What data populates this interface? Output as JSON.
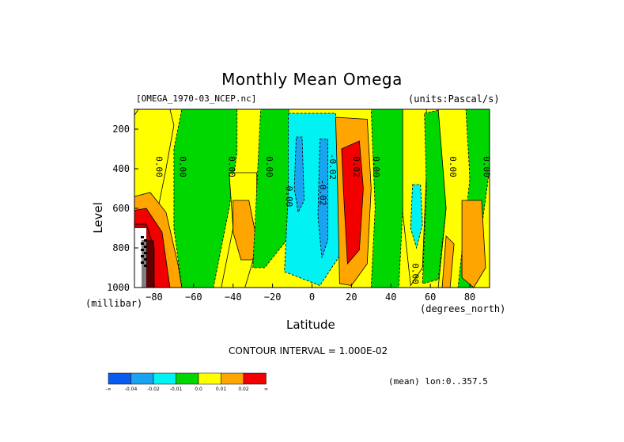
{
  "header": {
    "title": "Monthly Mean Omega",
    "file": "[OMEGA_1970-03_NCEP.nc]",
    "units": "(units:Pascal/s)"
  },
  "axes": {
    "ylabel": "Level",
    "yunits": "(millibar)",
    "xlabel": "Latitude",
    "xunits": "(degrees_north)"
  },
  "footer": {
    "contour_interval": "CONTOUR INTERVAL = 1.000E-02",
    "mean_note": "(mean) lon:0..357.5"
  },
  "colorbar": {
    "colors": [
      "#0a5cf0",
      "#1aa3f0",
      "#00f2f2",
      "#00d600",
      "#ffff00",
      "#ffa500",
      "#f20000"
    ],
    "labels": [
      "-∞",
      "-0.04",
      "-0.02",
      "-0.01",
      "0.0",
      "0.01",
      "0.02",
      "∞"
    ]
  },
  "chart_data": {
    "type": "contour",
    "title": "Monthly Mean Omega",
    "xlabel": "Latitude",
    "ylabel": "Level",
    "xlim": [
      -90,
      90
    ],
    "ylim": [
      1000,
      100
    ],
    "xticks": [
      -80,
      -60,
      -40,
      -20,
      0,
      20,
      40,
      60,
      80
    ],
    "yticks": [
      200,
      400,
      600,
      800,
      1000
    ],
    "contour_labels": [
      "0.00",
      "0.00",
      "0.00",
      "0.00",
      "0.00",
      "-0.02",
      "-0.02",
      "0.02",
      "0.00",
      "0.00",
      "0.00",
      "0.00"
    ],
    "regions": [
      {
        "level": "0.00",
        "poly": [
          [
            -88,
            100
          ],
          [
            -72,
            100
          ],
          [
            -70,
            180
          ],
          [
            -74,
            400
          ],
          [
            -78,
            600
          ],
          [
            -82,
            750
          ],
          [
            -90,
            760
          ],
          [
            -90,
            130
          ]
        ]
      },
      {
        "level": "-0.01",
        "poly": [
          [
            -66,
            100
          ],
          [
            -38,
            100
          ],
          [
            -38,
            320
          ],
          [
            -42,
            600
          ],
          [
            -50,
            1000
          ],
          [
            -66,
            1000
          ],
          [
            -70,
            700
          ],
          [
            -70,
            300
          ]
        ]
      },
      {
        "level": "0.00",
        "poly": [
          [
            -42,
            420
          ],
          [
            -28,
            420
          ],
          [
            -28,
            800
          ],
          [
            -34,
            1000
          ],
          [
            -46,
            1000
          ],
          [
            -40,
            700
          ]
        ]
      },
      {
        "level": "0.01",
        "poly": [
          [
            -40,
            560
          ],
          [
            -32,
            560
          ],
          [
            -28,
            760
          ],
          [
            -30,
            860
          ],
          [
            -36,
            860
          ],
          [
            -40,
            720
          ]
        ]
      },
      {
        "level": "-0.01",
        "poly": [
          [
            -26,
            100
          ],
          [
            -12,
            100
          ],
          [
            -8,
            250
          ],
          [
            -8,
            700
          ],
          [
            -24,
            900
          ],
          [
            -30,
            900
          ],
          [
            -28,
            500
          ]
        ]
      },
      {
        "level": "-0.02",
        "poly": [
          [
            -12,
            120
          ],
          [
            12,
            120
          ],
          [
            13,
            400
          ],
          [
            14,
            840
          ],
          [
            4,
            990
          ],
          [
            -14,
            920
          ],
          [
            -12,
            520
          ]
        ]
      },
      {
        "level": "-0.04",
        "poly": [
          [
            -8,
            240
          ],
          [
            -5,
            240
          ],
          [
            -4,
            560
          ],
          [
            -7,
            620
          ],
          [
            -9,
            500
          ]
        ]
      },
      {
        "level": "-0.04",
        "poly": [
          [
            4,
            250
          ],
          [
            8,
            250
          ],
          [
            8,
            760
          ],
          [
            5,
            850
          ],
          [
            3,
            640
          ]
        ]
      },
      {
        "level": "0.01",
        "poly": [
          [
            12,
            140
          ],
          [
            28,
            150
          ],
          [
            30,
            500
          ],
          [
            28,
            880
          ],
          [
            20,
            990
          ],
          [
            14,
            980
          ],
          [
            13,
            500
          ]
        ]
      },
      {
        "level": "0.02",
        "poly": [
          [
            15,
            300
          ],
          [
            24,
            260
          ],
          [
            26,
            500
          ],
          [
            24,
            810
          ],
          [
            18,
            880
          ],
          [
            16,
            520
          ]
        ]
      },
      {
        "level": "-0.01",
        "poly": [
          [
            30,
            100
          ],
          [
            46,
            100
          ],
          [
            48,
            250
          ],
          [
            46,
            600
          ],
          [
            44,
            1000
          ],
          [
            30,
            1000
          ],
          [
            32,
            600
          ]
        ]
      },
      {
        "level": "0.00",
        "poly": [
          [
            46,
            100
          ],
          [
            58,
            100
          ],
          [
            58,
            420
          ],
          [
            56,
            900
          ],
          [
            50,
            990
          ],
          [
            46,
            620
          ]
        ]
      },
      {
        "level": "-0.01",
        "poly": [
          [
            57,
            120
          ],
          [
            66,
            100
          ],
          [
            68,
            600
          ],
          [
            64,
            960
          ],
          [
            56,
            980
          ],
          [
            58,
            500
          ]
        ]
      },
      {
        "level": "-0.02",
        "poly": [
          [
            51,
            480
          ],
          [
            55,
            480
          ],
          [
            56,
            680
          ],
          [
            53,
            800
          ],
          [
            50,
            700
          ]
        ]
      },
      {
        "level": "0.00",
        "poly": [
          [
            64,
            100
          ],
          [
            80,
            100
          ],
          [
            80,
            650
          ],
          [
            78,
            1000
          ],
          [
            64,
            1000
          ],
          [
            68,
            600
          ]
        ]
      },
      {
        "level": "-0.01",
        "poly": [
          [
            78,
            100
          ],
          [
            90,
            100
          ],
          [
            90,
            400
          ],
          [
            82,
            1000
          ],
          [
            74,
            1000
          ],
          [
            80,
            450
          ]
        ]
      },
      {
        "level": "0.01",
        "poly": [
          [
            68,
            740
          ],
          [
            72,
            780
          ],
          [
            70,
            1000
          ],
          [
            66,
            1000
          ]
        ]
      },
      {
        "level": "0.01",
        "poly": [
          [
            76,
            560
          ],
          [
            86,
            560
          ],
          [
            88,
            900
          ],
          [
            82,
            1000
          ],
          [
            76,
            950
          ]
        ]
      },
      {
        "level": "0.01",
        "poly": [
          [
            -90,
            540
          ],
          [
            -82,
            520
          ],
          [
            -74,
            620
          ],
          [
            -68,
            880
          ],
          [
            -66,
            1000
          ],
          [
            -90,
            1000
          ]
        ]
      },
      {
        "level": "0.02",
        "poly": [
          [
            -90,
            610
          ],
          [
            -84,
            600
          ],
          [
            -76,
            720
          ],
          [
            -72,
            1000
          ],
          [
            -90,
            1000
          ]
        ]
      },
      {
        "level": "0.05",
        "poly": [
          [
            -90,
            680
          ],
          [
            -84,
            680
          ],
          [
            -80,
            800
          ],
          [
            -80,
            1000
          ],
          [
            -90,
            1000
          ]
        ]
      }
    ],
    "missing": {
      "poly": [
        [
          -90,
          700
        ],
        [
          -84,
          700
        ],
        [
          -84,
          1000
        ],
        [
          -90,
          1000
        ]
      ]
    }
  }
}
